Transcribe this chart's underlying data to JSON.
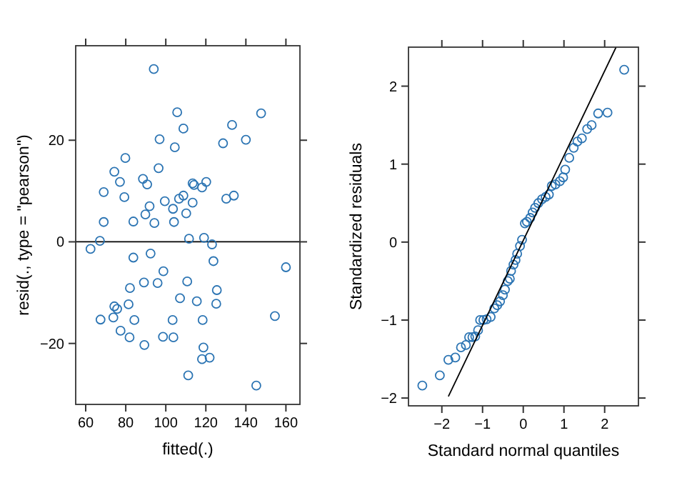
{
  "chart_data": [
    {
      "type": "scatter",
      "xlabel": "fitted(.)",
      "ylabel": "resid(., type = \"pearson\")",
      "xlim": [
        55,
        167
      ],
      "ylim": [
        -32,
        38.6
      ],
      "xticks": [
        60,
        80,
        100,
        120,
        140,
        160
      ],
      "yticks": [
        -20,
        0,
        20
      ],
      "marker": "circle",
      "ref_lines": [
        {
          "axis": "y",
          "value": 0,
          "color": "#000000"
        }
      ],
      "series": [
        {
          "color": "#2b74b3",
          "x": [
            94.0,
            105.7,
            108.8,
            147.6,
            133.1,
            96.9,
            104.5,
            128.6,
            140,
            79.8,
            96.4,
            74.3,
            77.1,
            88.6,
            90.7,
            69.0,
            79.3,
            113.4,
            114.1,
            118.1,
            120.2,
            130.2,
            134.0,
            108.8,
            106.6,
            99.5,
            113.4,
            91.9,
            103.6,
            110.2,
            89.8,
            69.0,
            83.8,
            94.3,
            104.1,
            67.1,
            111.6,
            119.1,
            62.4,
            123.1,
            83.8,
            92.4,
            123.8,
            160,
            98.8,
            110.7,
            89.1,
            95.9,
            82.1,
            125.5,
            107.1,
            115.5,
            125.2,
            81.4,
            74.3,
            75.7,
            67.4,
            73.8,
            84.3,
            103.4,
            118.4,
            154.5,
            77.4,
            81.9,
            89.3,
            98.6,
            103.8,
            118.8,
            118.1,
            121.9,
            111.2,
            145.2
          ],
          "values": [
            34.0,
            25.5,
            22.3,
            25.3,
            23.0,
            20.2,
            18.6,
            19.4,
            20.1,
            16.5,
            14.5,
            13.8,
            11.8,
            12.4,
            11.3,
            9.8,
            8.8,
            11.5,
            11.2,
            10.7,
            11.8,
            8.5,
            9.1,
            9.1,
            8.5,
            8.0,
            7.7,
            7.0,
            6.5,
            5.6,
            5.4,
            3.9,
            4.0,
            3.7,
            3.9,
            0.2,
            0.6,
            0.8,
            -1.4,
            -0.5,
            -3.1,
            -2.3,
            -3.8,
            -5.0,
            -5.8,
            -7.8,
            -8.0,
            -8.1,
            -9.1,
            -9.5,
            -11.1,
            -11.7,
            -12.2,
            -12.3,
            -12.7,
            -13.2,
            -15.3,
            -14.9,
            -15.4,
            -15.4,
            -15.4,
            -14.6,
            -17.5,
            -18.8,
            -20.3,
            -18.7,
            -18.8,
            -20.8,
            -23.1,
            -22.8,
            -26.3,
            -28.3
          ]
        }
      ]
    },
    {
      "type": "scatter",
      "xlabel": "Standard normal quantiles",
      "ylabel": "Standardized residuals",
      "xlim": [
        -2.82,
        2.83
      ],
      "ylim": [
        -2.1,
        2.5
      ],
      "xticks": [
        -2,
        -1,
        0,
        1,
        2
      ],
      "yticks": [
        -2,
        -1,
        0,
        1,
        2
      ],
      "marker": "circle",
      "series": [
        {
          "color": "#2b74b3",
          "x": [
            -2.48,
            -2.05,
            -1.84,
            -1.67,
            -1.53,
            -1.41,
            -1.33,
            -1.25,
            -1.18,
            -1.11,
            -1.06,
            -0.98,
            -0.9,
            -0.8,
            -0.71,
            -0.64,
            -0.57,
            -0.5,
            -0.45,
            -0.38,
            -0.33,
            -0.3,
            -0.24,
            -0.19,
            -0.15,
            -0.08,
            -0.03,
            0.04,
            0.09,
            0.17,
            0.23,
            0.29,
            0.37,
            0.46,
            0.55,
            0.63,
            0.7,
            0.79,
            0.9,
            0.98,
            1.03,
            1.13,
            1.24,
            1.33,
            1.44,
            1.57,
            1.68,
            1.84,
            2.07,
            2.48
          ],
          "values": [
            -1.84,
            -1.71,
            -1.51,
            -1.48,
            -1.35,
            -1.32,
            -1.22,
            -1.22,
            -1.21,
            -1.13,
            -1.0,
            -1.0,
            -0.99,
            -0.96,
            -0.85,
            -0.81,
            -0.76,
            -0.68,
            -0.61,
            -0.5,
            -0.47,
            -0.37,
            -0.29,
            -0.23,
            -0.15,
            -0.05,
            0.03,
            0.24,
            0.26,
            0.31,
            0.38,
            0.44,
            0.5,
            0.55,
            0.58,
            0.61,
            0.72,
            0.74,
            0.78,
            0.83,
            0.93,
            1.08,
            1.21,
            1.29,
            1.33,
            1.45,
            1.5,
            1.65,
            1.66,
            2.21
          ]
        },
        {
          "type": "line",
          "marker": "none",
          "color": "#000000",
          "x": [
            -1.84,
            2.28
          ],
          "values": [
            -1.98,
            2.5
          ]
        }
      ]
    }
  ]
}
